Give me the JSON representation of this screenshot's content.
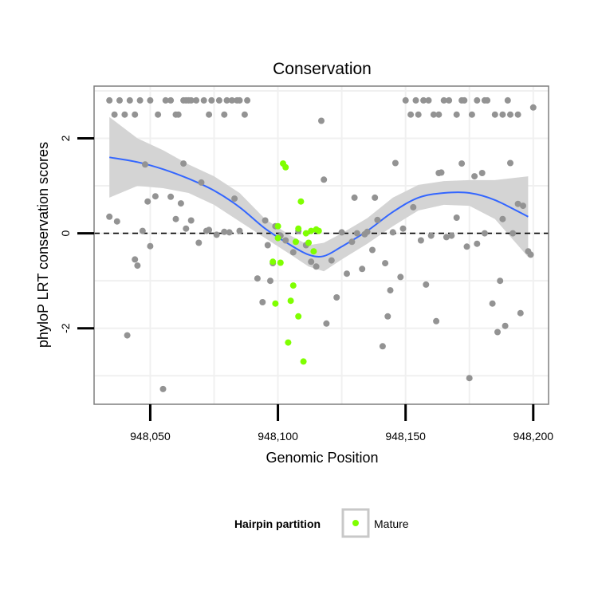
{
  "chart_data": {
    "type": "scatter",
    "title": "Conservation",
    "xlabel": "Genomic Position",
    "ylabel": "phyloP LRT conservation scores",
    "xlim": [
      948028,
      948206
    ],
    "ylim": [
      -3.6,
      3.1
    ],
    "x_ticks": [
      948050,
      948100,
      948150,
      948200
    ],
    "x_tick_labels": [
      "948,050",
      "948,100",
      "948,150",
      "948,200"
    ],
    "y_ticks": [
      -2,
      0,
      2
    ],
    "y_tick_labels": [
      "-2",
      "0",
      "2"
    ],
    "reference_line_y": 0,
    "legend": {
      "title": "Hairpin partition",
      "entries": [
        "Mature"
      ],
      "placement": "bottom"
    },
    "colors": {
      "other": "#939393",
      "mature": "#7fff00",
      "smooth": "#3366ff",
      "band": "#d4d4d4",
      "panel_border": "#7f7f7f",
      "grid": "#f0f0f0"
    },
    "smooth": {
      "x": [
        948034,
        948045,
        948055,
        948065,
        948075,
        948085,
        948095,
        948105,
        948112,
        948118,
        948125,
        948135,
        948145,
        948155,
        948165,
        948175,
        948185,
        948198
      ],
      "y": [
        1.6,
        1.5,
        1.35,
        1.15,
        0.9,
        0.55,
        0.1,
        -0.25,
        -0.45,
        -0.48,
        -0.28,
        0.05,
        0.45,
        0.75,
        0.85,
        0.85,
        0.7,
        0.35
      ],
      "lower": [
        0.75,
        1.0,
        0.95,
        0.85,
        0.6,
        0.25,
        -0.1,
        -0.45,
        -0.7,
        -0.8,
        -0.55,
        -0.22,
        0.15,
        0.48,
        0.6,
        0.58,
        0.3,
        -0.5
      ],
      "upper": [
        2.45,
        2.0,
        1.75,
        1.45,
        1.2,
        0.85,
        0.3,
        -0.05,
        -0.25,
        -0.2,
        0.0,
        0.32,
        0.75,
        1.02,
        1.1,
        1.12,
        1.12,
        1.2
      ]
    },
    "series": [
      {
        "name": "Other",
        "points": [
          [
            948034,
            2.8
          ],
          [
            948036,
            2.5
          ],
          [
            948038,
            2.8
          ],
          [
            948040,
            2.5
          ],
          [
            948042,
            2.8
          ],
          [
            948044,
            2.5
          ],
          [
            948046,
            2.8
          ],
          [
            948050,
            2.8
          ],
          [
            948053,
            2.5
          ],
          [
            948056,
            2.8
          ],
          [
            948058,
            2.8
          ],
          [
            948060,
            2.5
          ],
          [
            948061,
            2.5
          ],
          [
            948063,
            2.8
          ],
          [
            948064,
            2.8
          ],
          [
            948065,
            2.8
          ],
          [
            948066,
            2.8
          ],
          [
            948068,
            2.8
          ],
          [
            948071,
            2.8
          ],
          [
            948073,
            2.5
          ],
          [
            948074,
            2.8
          ],
          [
            948077,
            2.8
          ],
          [
            948079,
            2.5
          ],
          [
            948080,
            2.8
          ],
          [
            948082,
            2.8
          ],
          [
            948084,
            2.8
          ],
          [
            948085,
            2.8
          ],
          [
            948087,
            2.5
          ],
          [
            948088,
            2.8
          ],
          [
            948034,
            0.35
          ],
          [
            948037,
            0.25
          ],
          [
            948041,
            -2.15
          ],
          [
            948044,
            -0.55
          ],
          [
            948045,
            -0.68
          ],
          [
            948047,
            0.05
          ],
          [
            948048,
            1.45
          ],
          [
            948049,
            0.67
          ],
          [
            948050,
            -0.27
          ],
          [
            948052,
            0.78
          ],
          [
            948055,
            -3.28
          ],
          [
            948058,
            0.77
          ],
          [
            948060,
            0.3
          ],
          [
            948062,
            0.63
          ],
          [
            948063,
            1.47
          ],
          [
            948064,
            0.1
          ],
          [
            948066,
            0.27
          ],
          [
            948069,
            -0.2
          ],
          [
            948070,
            1.07
          ],
          [
            948072,
            0.05
          ],
          [
            948073,
            0.07
          ],
          [
            948076,
            -0.03
          ],
          [
            948079,
            0.03
          ],
          [
            948081,
            0.02
          ],
          [
            948083,
            0.73
          ],
          [
            948085,
            0.05
          ],
          [
            948092,
            -0.95
          ],
          [
            948094,
            -1.45
          ],
          [
            948095,
            0.27
          ],
          [
            948096,
            -0.25
          ],
          [
            948097,
            -1.0
          ],
          [
            948098,
            -0.63
          ],
          [
            948099,
            0.15
          ],
          [
            948101,
            -0.05
          ],
          [
            948103,
            -0.15
          ],
          [
            948106,
            -0.4
          ],
          [
            948108,
            0.05
          ],
          [
            948111,
            -0.25
          ],
          [
            948113,
            -0.6
          ],
          [
            948115,
            -0.7
          ],
          [
            948117,
            2.37
          ],
          [
            948118,
            1.13
          ],
          [
            948119,
            -1.9
          ],
          [
            948121,
            -0.57
          ],
          [
            948123,
            -1.35
          ],
          [
            948125,
            0.02
          ],
          [
            948127,
            -0.85
          ],
          [
            948129,
            -0.18
          ],
          [
            948130,
            0.75
          ],
          [
            948131,
            0.0
          ],
          [
            948133,
            -0.75
          ],
          [
            948134,
            -0.02
          ],
          [
            948135,
            0.03
          ],
          [
            948137,
            -0.35
          ],
          [
            948138,
            0.75
          ],
          [
            948139,
            0.28
          ],
          [
            948141,
            -2.38
          ],
          [
            948142,
            -0.63
          ],
          [
            948143,
            -1.75
          ],
          [
            948144,
            -1.2
          ],
          [
            948145,
            0.02
          ],
          [
            948146,
            1.48
          ],
          [
            948148,
            -0.92
          ],
          [
            948149,
            0.1
          ],
          [
            948153,
            0.55
          ],
          [
            948156,
            -0.15
          ],
          [
            948158,
            -1.08
          ],
          [
            948160,
            -0.05
          ],
          [
            948162,
            -1.85
          ],
          [
            948163,
            1.27
          ],
          [
            948164,
            1.28
          ],
          [
            948166,
            -0.08
          ],
          [
            948168,
            -0.05
          ],
          [
            948170,
            0.33
          ],
          [
            948172,
            1.47
          ],
          [
            948174,
            -0.28
          ],
          [
            948175,
            -3.05
          ],
          [
            948177,
            1.2
          ],
          [
            948178,
            -0.22
          ],
          [
            948180,
            1.27
          ],
          [
            948181,
            0.0
          ],
          [
            948184,
            -1.48
          ],
          [
            948186,
            -2.08
          ],
          [
            948187,
            -1.0
          ],
          [
            948188,
            0.3
          ],
          [
            948189,
            -1.95
          ],
          [
            948191,
            1.48
          ],
          [
            948192,
            0.0
          ],
          [
            948194,
            0.62
          ],
          [
            948195,
            -1.68
          ],
          [
            948196,
            0.58
          ],
          [
            948198,
            -0.38
          ],
          [
            948199,
            -0.45
          ],
          [
            948150,
            2.8
          ],
          [
            948152,
            2.5
          ],
          [
            948154,
            2.8
          ],
          [
            948155,
            2.5
          ],
          [
            948157,
            2.8
          ],
          [
            948159,
            2.8
          ],
          [
            948161,
            2.5
          ],
          [
            948163,
            2.5
          ],
          [
            948165,
            2.8
          ],
          [
            948167,
            2.8
          ],
          [
            948170,
            2.5
          ],
          [
            948172,
            2.8
          ],
          [
            948173,
            2.8
          ],
          [
            948176,
            2.5
          ],
          [
            948178,
            2.8
          ],
          [
            948181,
            2.8
          ],
          [
            948182,
            2.8
          ],
          [
            948185,
            2.5
          ],
          [
            948188,
            2.5
          ],
          [
            948190,
            2.8
          ],
          [
            948191,
            2.5
          ],
          [
            948194,
            2.5
          ],
          [
            948200,
            2.65
          ]
        ]
      },
      {
        "name": "Mature",
        "points": [
          [
            948098,
            -0.6
          ],
          [
            948099,
            -1.48
          ],
          [
            948100,
            0.15
          ],
          [
            948100,
            -0.1
          ],
          [
            948101,
            -0.62
          ],
          [
            948102,
            1.47
          ],
          [
            948103,
            1.39
          ],
          [
            948104,
            -2.3
          ],
          [
            948105,
            -1.42
          ],
          [
            948106,
            -1.1
          ],
          [
            948107,
            -0.18
          ],
          [
            948108,
            -1.75
          ],
          [
            948108,
            0.1
          ],
          [
            948109,
            0.67
          ],
          [
            948110,
            -2.7
          ],
          [
            948111,
            0.0
          ],
          [
            948112,
            -0.2
          ],
          [
            948113,
            0.05
          ],
          [
            948114,
            -0.38
          ],
          [
            948115,
            0.08
          ],
          [
            948116,
            0.05
          ]
        ]
      }
    ]
  }
}
